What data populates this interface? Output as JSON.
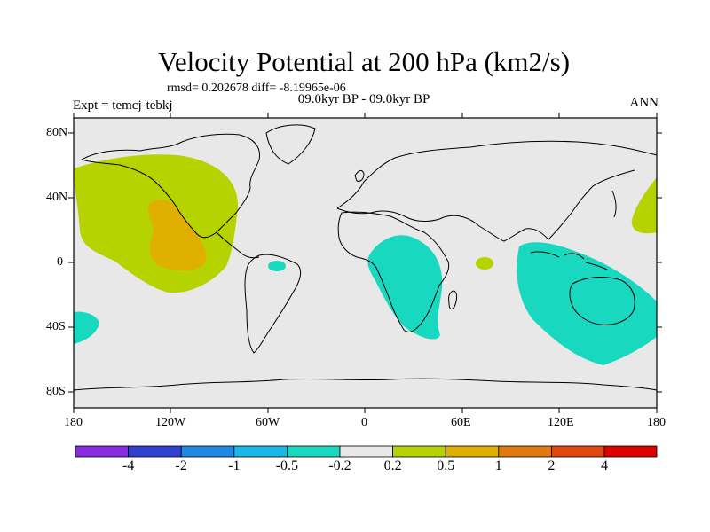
{
  "title": "Velocity Potential at 200 hPa (km2/s)",
  "rmsd_line": "rmsd= 0.202678 diff= -8.19965e-06",
  "subtitle": "09.0kyr BP - 09.0kyr BP",
  "experiment": "Expt = temcj-tebkj",
  "season": "ANN",
  "lat_ticks": [
    "80N",
    "40N",
    "0",
    "40S",
    "80S"
  ],
  "lon_ticks": [
    "180",
    "120W",
    "60W",
    "0",
    "60E",
    "120E",
    "180"
  ],
  "colorbar": {
    "labels": [
      "-4",
      "-2",
      "-1",
      "-0.5",
      "-0.2",
      "0.2",
      "0.5",
      "1",
      "2",
      "4"
    ],
    "colors": [
      "#8a2be2",
      "#3040d0",
      "#1e88e5",
      "#19b8e6",
      "#19d8c0",
      "#e8e8e8",
      "#b5d300",
      "#e0b000",
      "#e07a10",
      "#e04810",
      "#e00000"
    ]
  }
}
